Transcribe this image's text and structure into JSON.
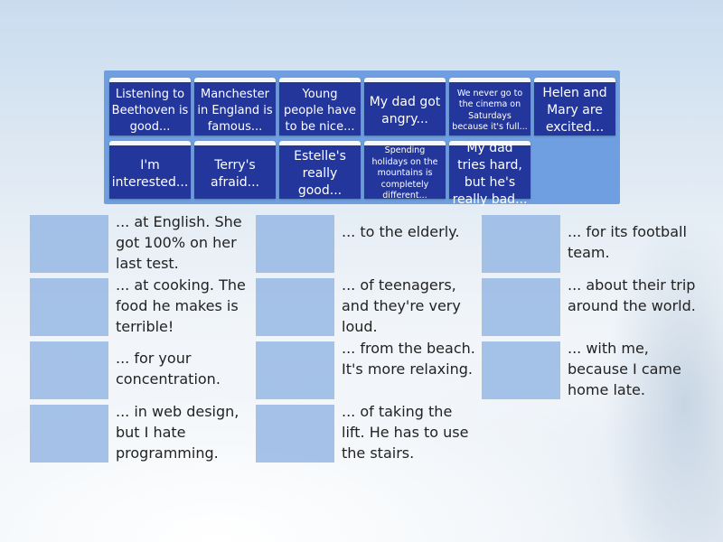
{
  "tiles": [
    "Listening to Beethoven is good...",
    "Manchester in England is famous...",
    "Young people have to be nice...",
    "My dad got angry...",
    "We never go to the cinema on Saturdays because it's full...",
    "Helen and Mary are excited...",
    "I'm interested...",
    "Terry's afraid...",
    "Estelle's really good...",
    "Spending holidays on the mountains is completely different...",
    "My dad tries hard, but he's really bad..."
  ],
  "endings": [
    "... at English. She got 100% on her last test.",
    "... at cooking. The food he makes is terrible!",
    "... for your concentration.",
    "... in web design, but I hate programming.",
    "... to the elderly.",
    "... of teenagers, and they're very loud.",
    "... from the beach. It's more relaxing.",
    "... of taking the lift. He has to use the stairs.",
    "... for its football team.",
    "... about their trip around the world.",
    "... with me, because I came home late."
  ],
  "colors": {
    "tile": "#23369b",
    "panel": "#6f9fe0",
    "slot": "#96b7e4"
  }
}
